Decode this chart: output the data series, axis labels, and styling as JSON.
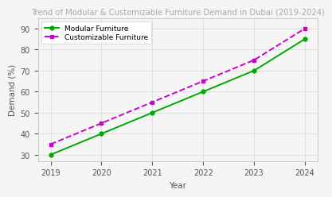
{
  "title": "Trend of Modular & Customizable Furniture Demand in Dubai (2019-2024)",
  "xlabel": "Year",
  "ylabel": "Demand (%)",
  "years": [
    2019,
    2020,
    2021,
    2022,
    2023,
    2024
  ],
  "modular": [
    30,
    40,
    50,
    60,
    70,
    85
  ],
  "customizable": [
    35,
    45,
    55,
    65,
    75,
    90
  ],
  "modular_color": "#00aa00",
  "customizable_color": "#cc00cc",
  "modular_label": "Modular Furniture",
  "customizable_label": "Customizable Furniture",
  "ylim": [
    27,
    95
  ],
  "yticks": [
    30,
    40,
    50,
    60,
    70,
    80,
    90
  ],
  "background_color": "#f5f5f5",
  "grid_color": "#dddddd",
  "title_fontsize": 7.2,
  "title_color": "#aaaaaa",
  "axis_label_fontsize": 7.5,
  "tick_fontsize": 7,
  "legend_fontsize": 6.5
}
